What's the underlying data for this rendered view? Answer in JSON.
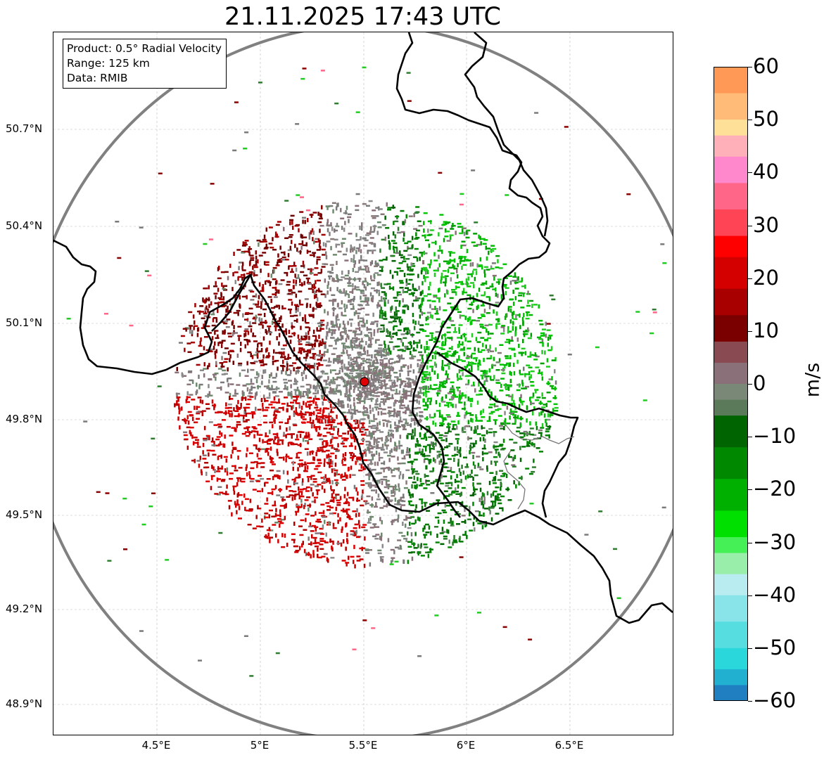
{
  "title": "21.11.2025 17:43 UTC",
  "info": {
    "product": "Product: 0.5° Radial Velocity",
    "range": "Range: 125 km",
    "data": "Data: RMIB"
  },
  "map": {
    "lat_labels": [
      "50.7°N",
      "50.4°N",
      "50.1°N",
      "49.8°N",
      "49.5°N",
      "49.2°N",
      "48.9°N"
    ],
    "lon_labels": [
      "4.5°E",
      "5°E",
      "5.5°E",
      "6°E",
      "6.5°E"
    ],
    "radar_site": {
      "name": "radar-site",
      "lon": 5.5,
      "lat": 49.91
    },
    "range_ring_color": "#808080",
    "site_color": "#e00000"
  },
  "colorbar": {
    "unit": "m/s",
    "ticks": [
      "60",
      "50",
      "40",
      "30",
      "20",
      "10",
      "0",
      "−10",
      "−20",
      "−30",
      "−40",
      "−50",
      "−60"
    ],
    "min": -60,
    "max": 60,
    "bands": [
      {
        "from": 55,
        "to": 60,
        "color": "#ff9955"
      },
      {
        "from": 50,
        "to": 55,
        "color": "#ffbb77"
      },
      {
        "from": 47,
        "to": 50,
        "color": "#ffe099"
      },
      {
        "from": 43,
        "to": 47,
        "color": "#ffb0b8"
      },
      {
        "from": 38,
        "to": 43,
        "color": "#ff88cc"
      },
      {
        "from": 33,
        "to": 38,
        "color": "#ff6688"
      },
      {
        "from": 28,
        "to": 33,
        "color": "#ff4455"
      },
      {
        "from": 24,
        "to": 28,
        "color": "#ff0000"
      },
      {
        "from": 18,
        "to": 24,
        "color": "#d40000"
      },
      {
        "from": 13,
        "to": 18,
        "color": "#a80000"
      },
      {
        "from": 8,
        "to": 13,
        "color": "#7a0000"
      },
      {
        "from": 4,
        "to": 8,
        "color": "#8a4a52"
      },
      {
        "from": 0,
        "to": 4,
        "color": "#8a7078"
      },
      {
        "from": -3,
        "to": 0,
        "color": "#7a8878"
      },
      {
        "from": -6,
        "to": -3,
        "color": "#5a7a5a"
      },
      {
        "from": -12,
        "to": -6,
        "color": "#006400"
      },
      {
        "from": -18,
        "to": -12,
        "color": "#008800"
      },
      {
        "from": -24,
        "to": -18,
        "color": "#00b000"
      },
      {
        "from": -29,
        "to": -24,
        "color": "#00e000"
      },
      {
        "from": -32,
        "to": -29,
        "color": "#44f055"
      },
      {
        "from": -36,
        "to": -32,
        "color": "#99eeaa"
      },
      {
        "from": -40,
        "to": -36,
        "color": "#b8ecf0"
      },
      {
        "from": -45,
        "to": -40,
        "color": "#88e4e8"
      },
      {
        "from": -50,
        "to": -45,
        "color": "#55dde0"
      },
      {
        "from": -54,
        "to": -50,
        "color": "#2ad8dc"
      },
      {
        "from": -57,
        "to": -54,
        "color": "#22b0d0"
      },
      {
        "from": -60,
        "to": -57,
        "color": "#1f7fc0"
      }
    ]
  }
}
